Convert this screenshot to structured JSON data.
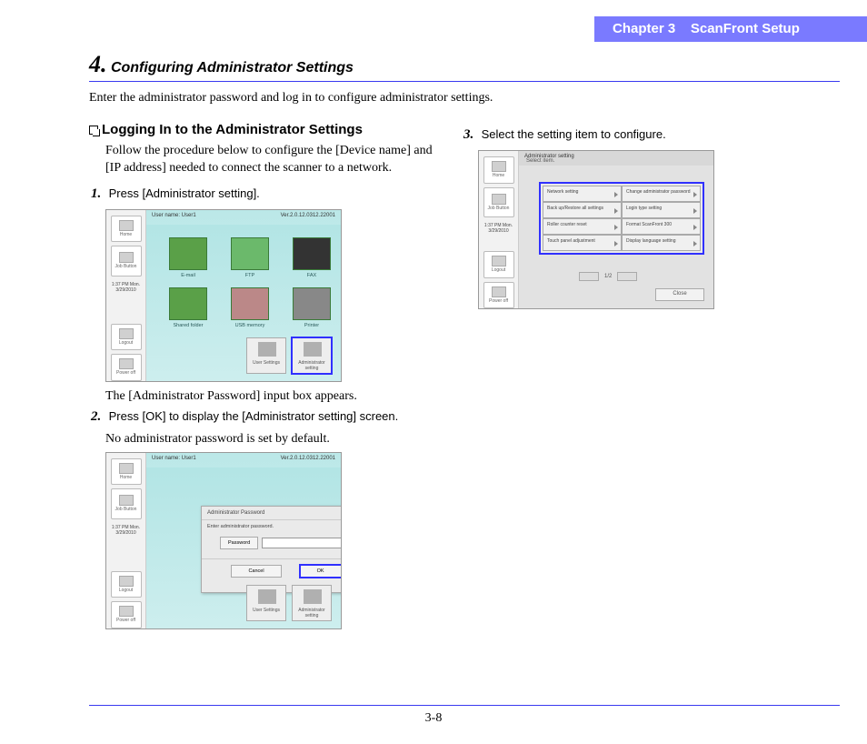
{
  "header": {
    "chapter": "Chapter 3",
    "title": "ScanFront Setup"
  },
  "section": {
    "number": "4.",
    "title": "Configuring Administrator Settings"
  },
  "intro": "Enter the administrator password and log in to configure administrator settings.",
  "left": {
    "subheading": "Logging In to the Administrator Settings",
    "subtext": "Follow the procedure below to configure the [Device name] and [IP address] needed to connect the scanner to a network.",
    "step1": {
      "num": "1.",
      "text": "Press [Administrator setting].",
      "after": "The [Administrator Password] input box appears."
    },
    "step2": {
      "num": "2.",
      "text": "Press [OK] to display the [Administrator setting] screen.",
      "after": "No administrator password is set by default."
    }
  },
  "right": {
    "step3": {
      "num": "3.",
      "text": "Select the setting item to configure."
    }
  },
  "screenshots": {
    "common": {
      "sidebar": {
        "home": "Home",
        "job": "Job Button",
        "time": "1:37 PM  Mon.\n3/29/2010",
        "logout": "Logout",
        "power": "Power off"
      },
      "topbar": {
        "user": "User name: User1",
        "ver": "Ver.2.0.12.0312.22001"
      }
    },
    "a": {
      "icons": [
        "E-mail",
        "FTP",
        "FAX",
        "Shared folder",
        "USB memory",
        "Printer"
      ],
      "bottom": {
        "user_settings": "User Settings",
        "admin": "Administrator\nsetting"
      }
    },
    "b": {
      "dialog": {
        "title": "Administrator Password",
        "subtitle": "Enter administrator password.",
        "field_label": "Password",
        "cancel": "Cancel",
        "ok": "OK"
      },
      "bottom": {
        "user_settings": "User Settings",
        "admin": "Administrator\nsetting"
      }
    },
    "c": {
      "title": "Administrator setting",
      "hint": "Select item.",
      "menu": [
        [
          "Network setting",
          "Change administrator password"
        ],
        [
          "Back up/Restore all settings",
          "Login type setting"
        ],
        [
          "Roller counter reset",
          "Format ScanFront 300"
        ],
        [
          "Touch panel adjustment",
          "Display language setting"
        ]
      ],
      "pager": "1/2",
      "close": "Close"
    }
  },
  "page_number": "3-8",
  "colors": {
    "header_bg": "#7a7aff",
    "rule": "#3a3af0",
    "highlight": "#3030ff",
    "screenshot_bg_teal": "#b0e4e4",
    "screenshot_bg_grey": "#e2e2e2"
  }
}
